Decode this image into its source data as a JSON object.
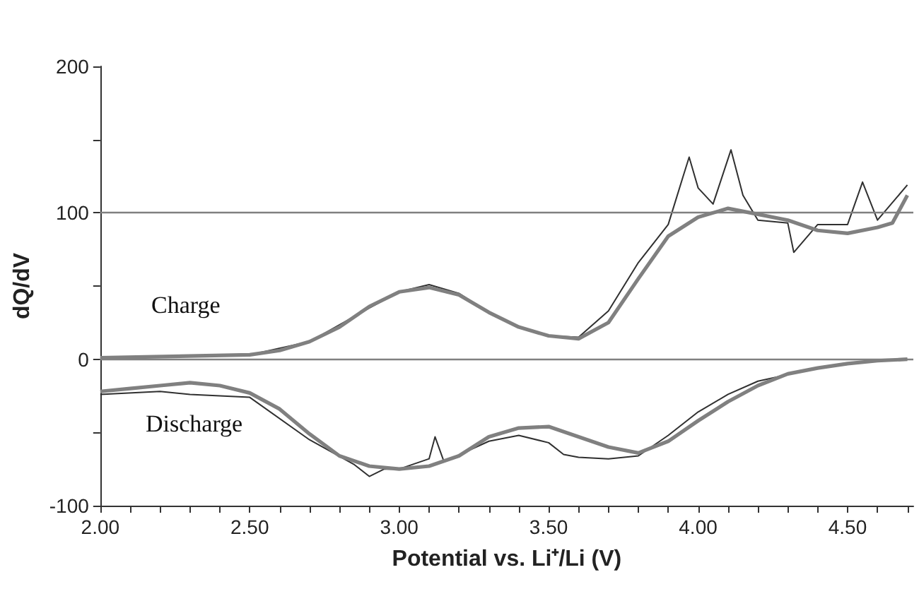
{
  "chart_data": {
    "type": "line",
    "xlabel": "Potential vs. Li⁺/Li (V)",
    "ylabel": "dQ/dV",
    "xlim": [
      2.0,
      4.72
    ],
    "ylim": [
      -100,
      200
    ],
    "xticks": [
      {
        "value": 2.0,
        "label": "2.00"
      },
      {
        "value": 2.1,
        "label": null
      },
      {
        "value": 2.2,
        "label": null
      },
      {
        "value": 2.3,
        "label": null
      },
      {
        "value": 2.4,
        "label": null
      },
      {
        "value": 2.5,
        "label": "2.50"
      },
      {
        "value": 2.6,
        "label": null
      },
      {
        "value": 2.7,
        "label": null
      },
      {
        "value": 2.8,
        "label": null
      },
      {
        "value": 2.9,
        "label": null
      },
      {
        "value": 3.0,
        "label": "3.00"
      },
      {
        "value": 3.1,
        "label": null
      },
      {
        "value": 3.2,
        "label": null
      },
      {
        "value": 3.3,
        "label": null
      },
      {
        "value": 3.4,
        "label": null
      },
      {
        "value": 3.5,
        "label": "3.50"
      },
      {
        "value": 3.6,
        "label": null
      },
      {
        "value": 3.7,
        "label": null
      },
      {
        "value": 3.8,
        "label": null
      },
      {
        "value": 3.9,
        "label": null
      },
      {
        "value": 4.0,
        "label": "4.00"
      },
      {
        "value": 4.1,
        "label": null
      },
      {
        "value": 4.2,
        "label": null
      },
      {
        "value": 4.3,
        "label": null
      },
      {
        "value": 4.4,
        "label": null
      },
      {
        "value": 4.5,
        "label": "4.50"
      },
      {
        "value": 4.6,
        "label": null
      },
      {
        "value": 4.7,
        "label": null
      }
    ],
    "yticks": [
      -100,
      {
        "value": -50,
        "label": null
      },
      0,
      {
        "value": 50,
        "label": null
      },
      100,
      {
        "value": 150,
        "label": null
      },
      200
    ],
    "marker": "none",
    "ref_lines": [
      {
        "axis": "y",
        "value": 0,
        "color": "#808080"
      },
      {
        "axis": "y",
        "value": 100,
        "color": "#808080"
      }
    ],
    "annotations": [
      "Charge",
      "Discharge"
    ],
    "series": [
      {
        "color": "#303030",
        "x": [
          2.0,
          2.5,
          2.7,
          2.9,
          3.0,
          3.1,
          3.2,
          3.3,
          3.4,
          3.5,
          3.6,
          3.7,
          3.8,
          3.9,
          3.95,
          3.97,
          4.0,
          4.05,
          4.11,
          4.15,
          4.2,
          4.3,
          4.32,
          4.4,
          4.5,
          4.55,
          4.6,
          4.7
        ],
        "values": [
          1,
          3,
          12,
          35,
          46,
          51,
          45,
          32,
          22,
          16,
          15,
          33,
          66,
          92,
          125,
          138,
          117,
          106,
          143,
          112,
          95,
          93,
          73,
          92,
          92,
          121,
          95,
          119
        ]
      },
      {
        "color": "#808080",
        "x": [
          2.0,
          2.5,
          2.6,
          2.7,
          2.8,
          2.9,
          3.0,
          3.1,
          3.2,
          3.3,
          3.4,
          3.5,
          3.6,
          3.7,
          3.8,
          3.9,
          4.0,
          4.1,
          4.2,
          4.3,
          4.4,
          4.5,
          4.6,
          4.65,
          4.7
        ],
        "values": [
          1,
          3,
          6,
          12,
          22,
          36,
          46,
          49,
          44,
          32,
          22,
          16,
          14,
          25,
          55,
          84,
          97,
          103,
          99,
          95,
          88,
          86,
          90,
          93,
          112
        ]
      },
      {
        "color": "#303030",
        "x": [
          2.0,
          2.2,
          2.3,
          2.5,
          2.7,
          2.85,
          2.9,
          2.95,
          3.0,
          3.1,
          3.12,
          3.15,
          3.3,
          3.4,
          3.5,
          3.55,
          3.6,
          3.7,
          3.8,
          3.9,
          4.0,
          4.1,
          4.2,
          4.4,
          4.6,
          4.7
        ],
        "values": [
          -24,
          -22,
          -24,
          -26,
          -55,
          -72,
          -80,
          -75,
          -75,
          -68,
          -53,
          -70,
          -56,
          -52,
          -57,
          -65,
          -67,
          -68,
          -66,
          -52,
          -36,
          -24,
          -15,
          -6,
          -1,
          0
        ]
      },
      {
        "color": "#808080",
        "x": [
          2.0,
          2.1,
          2.2,
          2.3,
          2.4,
          2.5,
          2.6,
          2.7,
          2.8,
          2.9,
          3.0,
          3.1,
          3.2,
          3.3,
          3.4,
          3.5,
          3.6,
          3.7,
          3.8,
          3.9,
          4.0,
          4.1,
          4.2,
          4.3,
          4.4,
          4.5,
          4.6,
          4.7
        ],
        "values": [
          -22,
          -20,
          -18,
          -16,
          -18,
          -23,
          -34,
          -51,
          -66,
          -73,
          -75,
          -73,
          -66,
          -53,
          -47,
          -46,
          -53,
          -60,
          -64,
          -56,
          -42,
          -29,
          -18,
          -10,
          -6,
          -3,
          -1,
          0
        ]
      }
    ]
  }
}
